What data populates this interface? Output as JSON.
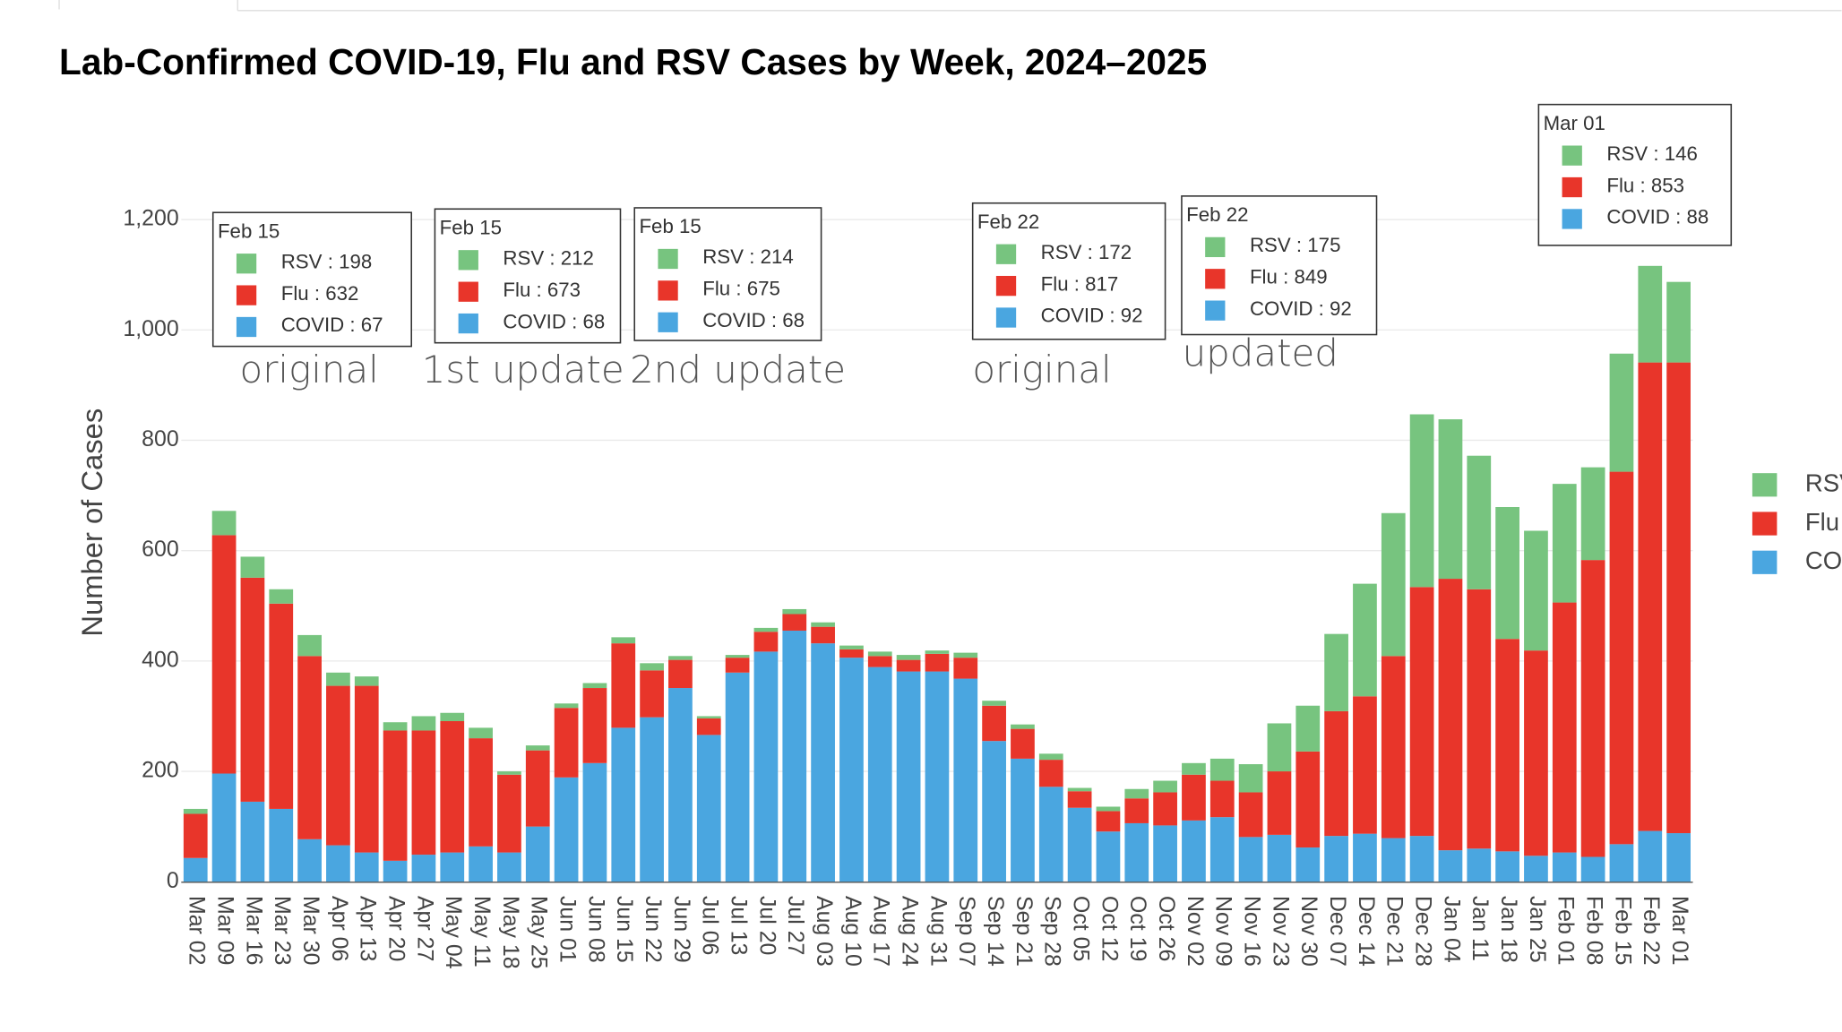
{
  "chart_data": {
    "type": "stacked_bar",
    "title": "Lab-Confirmed COVID-19, Flu and RSV Cases by Week, 2024–2025",
    "y_label": "Number of Cases",
    "categories": [
      "Mar 02",
      "Mar 09",
      "Mar 16",
      "Mar 23",
      "Mar 30",
      "Apr 06",
      "Apr 13",
      "Apr 20",
      "Apr 27",
      "May 04",
      "May 11",
      "May 18",
      "May 25",
      "Jun 01",
      "Jun 08",
      "Jun 15",
      "Jun 22",
      "Jun 29",
      "Jul 06",
      "Jul 13",
      "Jul 20",
      "Jul 27",
      "Aug 03",
      "Aug 10",
      "Aug 17",
      "Aug 24",
      "Aug 31",
      "Sep 07",
      "Sep 14",
      "Sep 21",
      "Sep 28",
      "Oct 05",
      "Oct 12",
      "Oct 19",
      "Oct 26",
      "Nov 02",
      "Nov 09",
      "Nov 16",
      "Nov 23",
      "Nov 30",
      "Dec 07",
      "Dec 14",
      "Dec 21",
      "Dec 28",
      "Jan 04",
      "Jan 11",
      "Jan 18",
      "Jan 25",
      "Feb 01",
      "Feb 08",
      "Feb 15",
      "Feb 22",
      "Mar 01"
    ],
    "series": [
      {
        "name": "COVID",
        "color": "#4aa6e0",
        "values": [
          43,
          196,
          145,
          132,
          77,
          66,
          53,
          38,
          49,
          53,
          64,
          53,
          100,
          189,
          215,
          279,
          298,
          351,
          266,
          379,
          417,
          455,
          432,
          406,
          389,
          381,
          381,
          368,
          255,
          223,
          172,
          134,
          91,
          106,
          102,
          111,
          117,
          81,
          85,
          62,
          83,
          87,
          79,
          83,
          57,
          60,
          55,
          47,
          53,
          45,
          68,
          92,
          88
        ]
      },
      {
        "name": "Flu",
        "color": "#e8352a",
        "values": [
          80,
          432,
          406,
          372,
          332,
          289,
          302,
          236,
          225,
          238,
          196,
          141,
          138,
          126,
          136,
          153,
          85,
          51,
          30,
          27,
          36,
          30,
          30,
          15,
          20,
          21,
          32,
          38,
          64,
          54,
          49,
          30,
          37,
          45,
          60,
          83,
          66,
          81,
          115,
          174,
          226,
          249,
          330,
          451,
          492,
          470,
          385,
          372,
          453,
          538,
          675,
          849,
          853
        ]
      },
      {
        "name": "RSV",
        "color": "#77c47f",
        "values": [
          9,
          44,
          38,
          26,
          38,
          24,
          17,
          15,
          26,
          15,
          19,
          6,
          9,
          8,
          9,
          11,
          13,
          7,
          4,
          5,
          7,
          9,
          8,
          7,
          8,
          9,
          6,
          9,
          9,
          8,
          11,
          6,
          8,
          17,
          21,
          21,
          40,
          51,
          87,
          83,
          140,
          204,
          259,
          313,
          289,
          242,
          239,
          217,
          215,
          168,
          214,
          175,
          146
        ]
      }
    ],
    "ylim": [
      0,
      1400
    ],
    "yticks": [
      0,
      200,
      400,
      600,
      800,
      {
        "value": 1000,
        "label": "1,000"
      },
      {
        "value": 1200,
        "label": "1,200"
      }
    ],
    "grid": true,
    "legend": "right",
    "annotations": [
      {
        "title": "Feb 15",
        "items": [
          "RSV : 198",
          "Flu : 632",
          "COVID : 67"
        ],
        "caption": "original"
      },
      {
        "title": "Feb 15",
        "items": [
          "RSV : 212",
          "Flu : 673",
          "COVID : 68"
        ],
        "caption": "1st update"
      },
      {
        "title": "Feb 15",
        "items": [
          "RSV : 214",
          "Flu : 675",
          "COVID : 68"
        ],
        "caption": "2nd update"
      },
      {
        "title": "Feb 22",
        "items": [
          "RSV : 172",
          "Flu : 817",
          "COVID : 92"
        ],
        "caption": "original"
      },
      {
        "title": "Feb 22",
        "items": [
          "RSV : 175",
          "Flu : 849",
          "COVID : 92"
        ],
        "caption": "updated"
      },
      {
        "title": "Mar 01",
        "items": [
          "RSV : 146",
          "Flu : 853",
          "COVID : 88"
        ]
      }
    ]
  }
}
